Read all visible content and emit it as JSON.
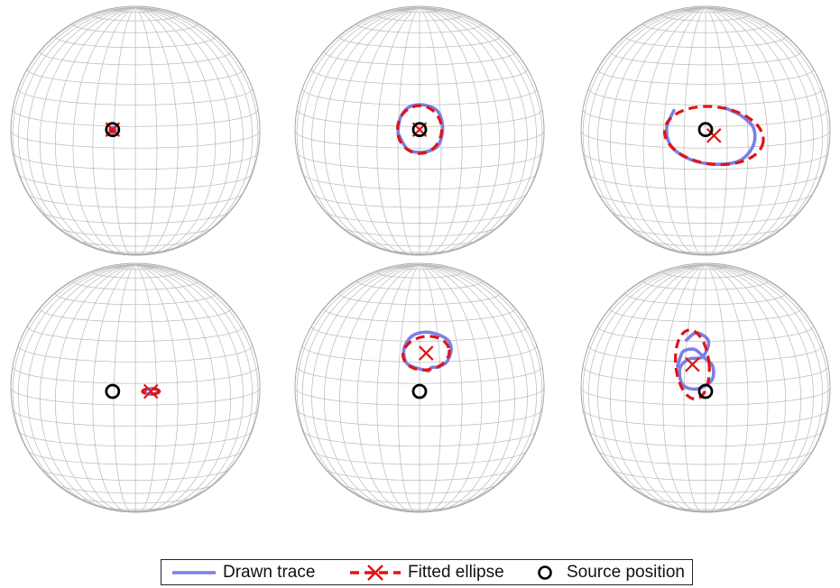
{
  "colors": {
    "grid": "#b9b9b9",
    "trace": "#7b7fe6",
    "ellipse": "#e01414",
    "source": "#000000"
  },
  "legend": {
    "trace_label": "Drawn trace",
    "ellipse_label": "Fitted ellipse",
    "source_label": "Source position"
  },
  "panels": [
    {
      "id": "top-left",
      "source": [
        -0.38,
        -0.02
      ],
      "center": [
        -0.38,
        -0.02
      ],
      "ellipse": {
        "rx": 0.04,
        "ry": 0.04,
        "rot": 0
      },
      "trace": [
        [
          -0.41,
          -0.05
        ],
        [
          -0.35,
          -0.05
        ],
        [
          -0.34,
          0.0
        ],
        [
          -0.38,
          0.03
        ],
        [
          -0.42,
          0.0
        ],
        [
          -0.4,
          -0.04
        ],
        [
          -0.36,
          -0.04
        ]
      ]
    },
    {
      "id": "top-mid",
      "source": [
        0.0,
        -0.02
      ],
      "center": [
        0.0,
        -0.02
      ],
      "ellipse": {
        "rx": 0.37,
        "ry": 0.4,
        "rot": 0
      },
      "trace": [
        [
          -0.35,
          0.06
        ],
        [
          -0.2,
          0.31
        ],
        [
          0.05,
          0.36
        ],
        [
          0.28,
          0.28
        ],
        [
          0.37,
          0.1
        ],
        [
          0.38,
          -0.12
        ],
        [
          0.3,
          -0.33
        ],
        [
          0.08,
          -0.43
        ],
        [
          -0.17,
          -0.4
        ],
        [
          -0.32,
          -0.22
        ],
        [
          -0.36,
          0.02
        ],
        [
          -0.34,
          0.1
        ]
      ]
    },
    {
      "id": "top-right",
      "source": [
        0.0,
        -0.02
      ],
      "center": [
        0.14,
        0.08
      ],
      "ellipse": {
        "rx": 0.83,
        "ry": 0.48,
        "rot": 0.12
      },
      "trace": [
        [
          -0.53,
          -0.34
        ],
        [
          -0.65,
          -0.05
        ],
        [
          -0.58,
          0.25
        ],
        [
          -0.28,
          0.47
        ],
        [
          0.15,
          0.56
        ],
        [
          0.57,
          0.5
        ],
        [
          0.8,
          0.24
        ],
        [
          0.8,
          -0.05
        ],
        [
          0.6,
          -0.25
        ],
        [
          0.4,
          -0.35
        ],
        [
          0.33,
          -0.38
        ]
      ]
    },
    {
      "id": "bottom-left",
      "source": [
        -0.38,
        0.06
      ],
      "center": [
        0.26,
        0.06
      ],
      "ellipse": {
        "rx": 0.14,
        "ry": 0.045,
        "rot": 0
      },
      "trace": [
        [
          0.13,
          0.05
        ],
        [
          0.2,
          0.1
        ],
        [
          0.32,
          0.1
        ],
        [
          0.4,
          0.06
        ],
        [
          0.34,
          0.02
        ],
        [
          0.22,
          0.02
        ],
        [
          0.14,
          0.05
        ]
      ]
    },
    {
      "id": "bottom-mid",
      "source": [
        0.0,
        0.06
      ],
      "center": [
        0.11,
        -0.58
      ],
      "ellipse": {
        "rx": 0.39,
        "ry": 0.28,
        "rot": -0.15
      },
      "trace": [
        [
          0.15,
          -0.28
        ],
        [
          0.2,
          -0.34
        ],
        [
          0.32,
          -0.35
        ],
        [
          0.46,
          -0.44
        ],
        [
          0.53,
          -0.65
        ],
        [
          0.45,
          -0.82
        ],
        [
          0.15,
          -0.93
        ],
        [
          -0.12,
          -0.87
        ],
        [
          -0.26,
          -0.65
        ],
        [
          -0.22,
          -0.42
        ],
        [
          -0.05,
          -0.33
        ],
        [
          0.12,
          -0.29
        ]
      ]
    },
    {
      "id": "bottom-right",
      "source": [
        0.0,
        0.06
      ],
      "center": [
        -0.22,
        -0.39
      ],
      "ellipse": {
        "rx": 0.28,
        "ry": 0.58,
        "rot": -0.1
      },
      "trace": [
        [
          -0.32,
          -0.8
        ],
        [
          -0.15,
          -0.92
        ],
        [
          0.05,
          -0.78
        ],
        [
          -0.05,
          -0.52
        ],
        [
          -0.28,
          -0.48
        ],
        [
          -0.43,
          -0.32
        ],
        [
          -0.38,
          -0.05
        ],
        [
          -0.15,
          0.02
        ],
        [
          0.1,
          -0.12
        ],
        [
          0.12,
          -0.36
        ],
        [
          -0.02,
          -0.5
        ],
        [
          -0.18,
          -0.64
        ],
        [
          -0.36,
          -0.62
        ],
        [
          -0.42,
          -0.52
        ],
        [
          -0.47,
          -0.36
        ]
      ]
    }
  ]
}
